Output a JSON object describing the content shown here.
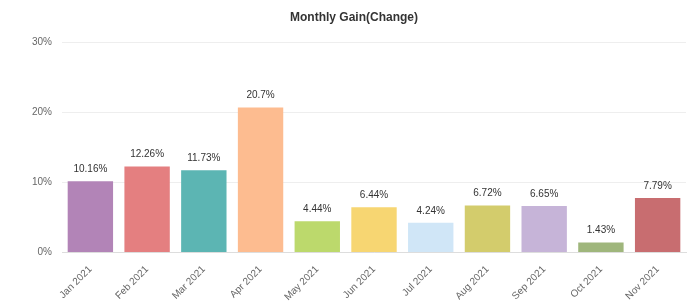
{
  "chart_data": {
    "type": "bar",
    "title": "Monthly Gain(Change)",
    "categories": [
      "Jan 2021",
      "Feb 2021",
      "Mar 2021",
      "Apr 2021",
      "May 2021",
      "Jun 2021",
      "Jul 2021",
      "Aug 2021",
      "Sep 2021",
      "Oct 2021",
      "Nov 2021"
    ],
    "values": [
      10.16,
      12.26,
      11.73,
      20.7,
      4.44,
      6.44,
      4.24,
      6.72,
      6.65,
      1.43,
      7.79
    ],
    "value_labels": [
      "10.16%",
      "12.26%",
      "11.73%",
      "20.7%",
      "4.44%",
      "6.44%",
      "4.24%",
      "6.72%",
      "6.65%",
      "1.43%",
      "7.79%"
    ],
    "colors": [
      "#b284b7",
      "#e47f80",
      "#5cb5b3",
      "#fdbc90",
      "#bcd96c",
      "#f7d672",
      "#d0e6f7",
      "#d3cc6c",
      "#c6b4d8",
      "#9fb67c",
      "#c86d70"
    ],
    "ylim": [
      0,
      30
    ],
    "yticks": [
      {
        "value": 0,
        "label": "0%"
      },
      {
        "value": 10,
        "label": "10%"
      },
      {
        "value": 20,
        "label": "20%"
      },
      {
        "value": 30,
        "label": "30%"
      }
    ],
    "grid": true,
    "data_labels": true
  }
}
